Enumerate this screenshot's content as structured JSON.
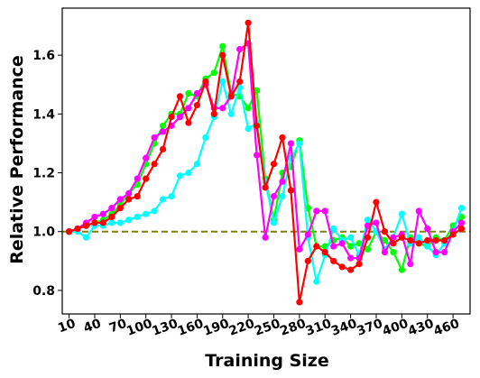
{
  "chart_data": {
    "type": "line",
    "title": "",
    "xlabel": "Training Size",
    "ylabel": "Relative Performance",
    "xlim": [
      2,
      480
    ],
    "ylim": [
      0.72,
      1.76
    ],
    "x_ticks": [
      10,
      40,
      70,
      100,
      130,
      160,
      190,
      220,
      250,
      280,
      310,
      340,
      370,
      400,
      430,
      460
    ],
    "y_ticks": [
      0.8,
      1.0,
      1.2,
      1.4,
      1.6
    ],
    "y_tick_labels": [
      "0.8",
      "1.0",
      "1.2",
      "1.4",
      "1.6"
    ],
    "grid": false,
    "legend": false,
    "reference_line": {
      "y": 1.0,
      "style": "dashed",
      "color": "#808000"
    },
    "x": [
      10,
      20,
      30,
      40,
      50,
      60,
      70,
      80,
      90,
      100,
      110,
      120,
      130,
      140,
      150,
      160,
      170,
      180,
      190,
      200,
      210,
      220,
      230,
      240,
      250,
      260,
      270,
      280,
      290,
      300,
      310,
      320,
      330,
      340,
      350,
      360,
      370,
      380,
      390,
      400,
      410,
      420,
      430,
      440,
      450,
      460,
      470
    ],
    "series": [
      {
        "color": "#00ff00",
        "values": [
          1.0,
          1.01,
          1.02,
          1.03,
          1.04,
          1.06,
          1.09,
          1.13,
          1.16,
          1.23,
          1.3,
          1.36,
          1.4,
          1.4,
          1.47,
          1.46,
          1.52,
          1.54,
          1.63,
          1.47,
          1.46,
          1.42,
          1.48,
          1.18,
          1.04,
          1.2,
          1.22,
          1.31,
          1.08,
          0.95,
          0.95,
          0.97,
          0.98,
          0.95,
          0.96,
          0.94,
          1.0,
          0.97,
          0.93,
          0.87,
          0.98,
          0.96,
          0.95,
          0.98,
          0.97,
          1.02,
          1.05
        ]
      },
      {
        "color": "#00ffff",
        "values": [
          1.0,
          1.0,
          0.98,
          1.02,
          1.02,
          1.03,
          1.03,
          1.04,
          1.05,
          1.06,
          1.07,
          1.11,
          1.12,
          1.19,
          1.2,
          1.23,
          1.32,
          1.39,
          1.51,
          1.4,
          1.49,
          1.35,
          1.37,
          1.17,
          1.03,
          1.12,
          1.25,
          1.3,
          0.98,
          0.83,
          0.92,
          1.01,
          0.97,
          0.98,
          0.92,
          1.04,
          1.0,
          0.94,
          0.98,
          1.06,
          0.96,
          0.98,
          0.95,
          0.92,
          0.96,
          1.0,
          1.08
        ]
      },
      {
        "color": "#ff00ff",
        "values": [
          1.0,
          1.01,
          1.03,
          1.05,
          1.06,
          1.08,
          1.11,
          1.13,
          1.18,
          1.25,
          1.32,
          1.34,
          1.36,
          1.39,
          1.42,
          1.47,
          1.5,
          1.42,
          1.42,
          1.46,
          1.62,
          1.64,
          1.26,
          0.98,
          1.12,
          1.17,
          1.3,
          0.94,
          0.99,
          1.07,
          1.07,
          0.95,
          0.96,
          0.91,
          0.91,
          1.02,
          1.03,
          0.93,
          0.98,
          0.99,
          0.89,
          1.07,
          1.01,
          0.93,
          0.93,
          1.0,
          1.03
        ]
      },
      {
        "color": "#ff0000",
        "values": [
          1.0,
          1.01,
          1.02,
          1.03,
          1.03,
          1.05,
          1.08,
          1.11,
          1.12,
          1.18,
          1.23,
          1.28,
          1.39,
          1.46,
          1.37,
          1.43,
          1.51,
          1.4,
          1.6,
          1.46,
          1.51,
          1.71,
          1.36,
          1.15,
          1.23,
          1.32,
          1.14,
          0.76,
          0.9,
          0.95,
          0.93,
          0.9,
          0.88,
          0.87,
          0.89,
          0.98,
          1.1,
          1.0,
          0.96,
          0.98,
          0.97,
          0.96,
          0.97,
          0.97,
          0.97,
          0.99,
          1.01
        ]
      }
    ]
  }
}
